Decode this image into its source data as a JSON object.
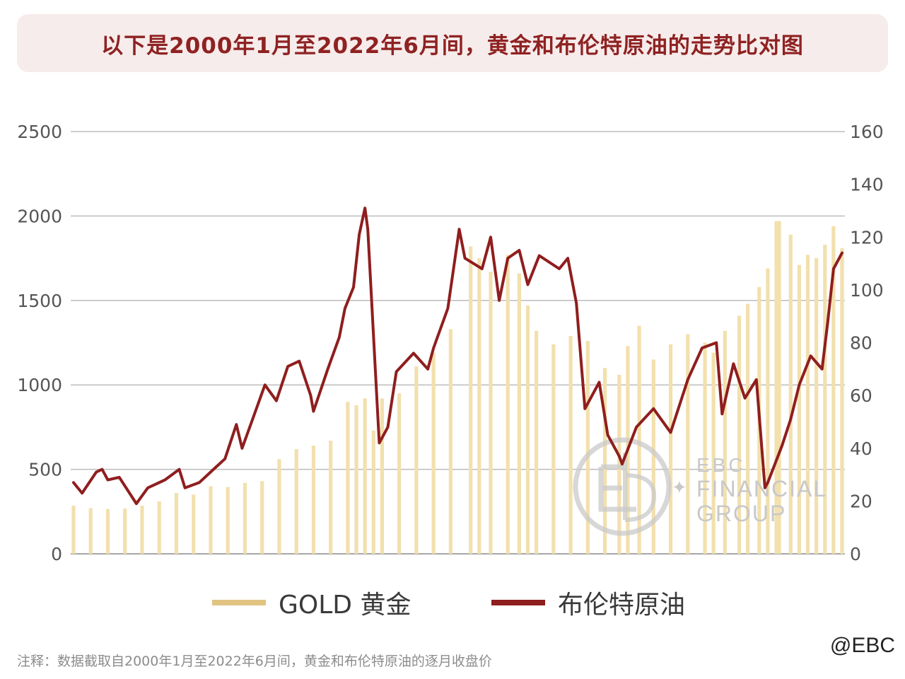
{
  "title": "以下是2000年1月至2022年6月间，黄金和布伦特原油的走势比对图",
  "footnote": "注释：数据截取自2000年1月至2022年6月间，黄金和布伦特原油的逐月收盘价",
  "brand_tag": "@EBC",
  "watermark": {
    "line1": "EBC",
    "line2": "FINANCIAL",
    "line3": "GROUP"
  },
  "colors": {
    "gold": "#f2e0ad",
    "gold_legend": "#e1c482",
    "oil": "#8f1e1e",
    "title_text": "#8f2222",
    "title_bg": "#f6eceb",
    "grid": "#bdbdbd"
  },
  "chart_data": {
    "type": "bar+line",
    "title": "以下是2000年1月至2022年6月间，黄金和布伦特原油的走势比对图",
    "x_range": [
      "2000-01",
      "2022-06"
    ],
    "legend_position": "bottom",
    "grid": true,
    "y_left": {
      "ticks": [
        0,
        500,
        1000,
        1500,
        2000,
        2500
      ],
      "range": [
        0,
        2500
      ]
    },
    "y_right": {
      "ticks": [
        0,
        20,
        40,
        60,
        80,
        100,
        120,
        140,
        160
      ],
      "range": [
        0,
        160
      ]
    },
    "series": [
      {
        "name": "GOLD 黄金",
        "type": "bar",
        "axis": "left",
        "points": [
          [
            "2000-01",
            285
          ],
          [
            "2000-07",
            270
          ],
          [
            "2001-01",
            265
          ],
          [
            "2001-07",
            268
          ],
          [
            "2002-01",
            285
          ],
          [
            "2002-07",
            310
          ],
          [
            "2003-01",
            360
          ],
          [
            "2003-07",
            350
          ],
          [
            "2004-01",
            400
          ],
          [
            "2004-07",
            395
          ],
          [
            "2005-01",
            420
          ],
          [
            "2005-07",
            430
          ],
          [
            "2006-01",
            560
          ],
          [
            "2006-07",
            620
          ],
          [
            "2007-01",
            640
          ],
          [
            "2007-07",
            670
          ],
          [
            "2008-01",
            900
          ],
          [
            "2008-04",
            880
          ],
          [
            "2008-07",
            920
          ],
          [
            "2008-10",
            730
          ],
          [
            "2009-01",
            920
          ],
          [
            "2009-07",
            950
          ],
          [
            "2010-01",
            1110
          ],
          [
            "2010-07",
            1190
          ],
          [
            "2011-01",
            1330
          ],
          [
            "2011-08",
            1820
          ],
          [
            "2011-11",
            1750
          ],
          [
            "2012-03",
            1670
          ],
          [
            "2012-09",
            1770
          ],
          [
            "2013-01",
            1660
          ],
          [
            "2013-04",
            1470
          ],
          [
            "2013-07",
            1320
          ],
          [
            "2014-01",
            1240
          ],
          [
            "2014-07",
            1290
          ],
          [
            "2015-01",
            1260
          ],
          [
            "2015-07",
            1100
          ],
          [
            "2015-12",
            1060
          ],
          [
            "2016-03",
            1230
          ],
          [
            "2016-07",
            1350
          ],
          [
            "2016-12",
            1150
          ],
          [
            "2017-06",
            1240
          ],
          [
            "2017-12",
            1300
          ],
          [
            "2018-06",
            1250
          ],
          [
            "2018-09",
            1190
          ],
          [
            "2019-01",
            1320
          ],
          [
            "2019-06",
            1410
          ],
          [
            "2019-09",
            1480
          ],
          [
            "2020-01",
            1580
          ],
          [
            "2020-04",
            1690
          ],
          [
            "2020-07",
            1970
          ],
          [
            "2020-08",
            1970
          ],
          [
            "2020-12",
            1890
          ],
          [
            "2021-03",
            1710
          ],
          [
            "2021-06",
            1770
          ],
          [
            "2021-09",
            1750
          ],
          [
            "2021-12",
            1830
          ],
          [
            "2022-03",
            1940
          ],
          [
            "2022-06",
            1810
          ]
        ]
      },
      {
        "name": "布伦特原油",
        "type": "line",
        "axis": "right",
        "points": [
          [
            "2000-01",
            27
          ],
          [
            "2000-04",
            23
          ],
          [
            "2000-09",
            31
          ],
          [
            "2000-11",
            32
          ],
          [
            "2001-01",
            28
          ],
          [
            "2001-05",
            29
          ],
          [
            "2001-11",
            19
          ],
          [
            "2002-03",
            25
          ],
          [
            "2002-09",
            28
          ],
          [
            "2003-02",
            32
          ],
          [
            "2003-04",
            25
          ],
          [
            "2003-09",
            27
          ],
          [
            "2004-03",
            33
          ],
          [
            "2004-06",
            36
          ],
          [
            "2004-10",
            49
          ],
          [
            "2004-12",
            40
          ],
          [
            "2005-04",
            52
          ],
          [
            "2005-08",
            64
          ],
          [
            "2005-12",
            58
          ],
          [
            "2006-04",
            71
          ],
          [
            "2006-08",
            73
          ],
          [
            "2006-12",
            60
          ],
          [
            "2007-01",
            54
          ],
          [
            "2007-06",
            70
          ],
          [
            "2007-10",
            82
          ],
          [
            "2007-12",
            93
          ],
          [
            "2008-03",
            101
          ],
          [
            "2008-05",
            121
          ],
          [
            "2008-07",
            131
          ],
          [
            "2008-08",
            123
          ],
          [
            "2008-12",
            42
          ],
          [
            "2009-03",
            48
          ],
          [
            "2009-06",
            69
          ],
          [
            "2009-12",
            76
          ],
          [
            "2010-05",
            70
          ],
          [
            "2010-07",
            78
          ],
          [
            "2010-12",
            93
          ],
          [
            "2011-04",
            123
          ],
          [
            "2011-06",
            112
          ],
          [
            "2011-09",
            110
          ],
          [
            "2011-12",
            108
          ],
          [
            "2012-03",
            120
          ],
          [
            "2012-06",
            96
          ],
          [
            "2012-09",
            112
          ],
          [
            "2013-01",
            115
          ],
          [
            "2013-04",
            102
          ],
          [
            "2013-08",
            113
          ],
          [
            "2014-03",
            108
          ],
          [
            "2014-06",
            112
          ],
          [
            "2014-09",
            95
          ],
          [
            "2014-12",
            55
          ],
          [
            "2015-05",
            65
          ],
          [
            "2015-08",
            45
          ],
          [
            "2015-12",
            37
          ],
          [
            "2016-01",
            34
          ],
          [
            "2016-06",
            48
          ],
          [
            "2016-12",
            55
          ],
          [
            "2017-06",
            46
          ],
          [
            "2017-12",
            66
          ],
          [
            "2018-05",
            78
          ],
          [
            "2018-10",
            80
          ],
          [
            "2018-12",
            53
          ],
          [
            "2019-04",
            72
          ],
          [
            "2019-08",
            59
          ],
          [
            "2019-12",
            66
          ],
          [
            "2020-03",
            25
          ],
          [
            "2020-04",
            27
          ],
          [
            "2020-09",
            41
          ],
          [
            "2020-12",
            51
          ],
          [
            "2021-03",
            64
          ],
          [
            "2021-07",
            75
          ],
          [
            "2021-11",
            70
          ],
          [
            "2022-01",
            88
          ],
          [
            "2022-03",
            108
          ],
          [
            "2022-06",
            114
          ]
        ]
      }
    ]
  }
}
